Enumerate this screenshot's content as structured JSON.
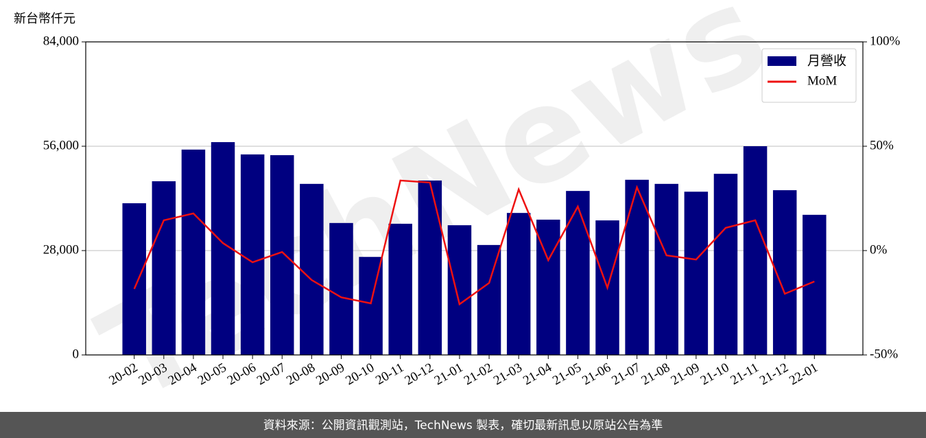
{
  "chart_data": {
    "type": "bar_line",
    "y_label": "新台幣仟元",
    "watermark": "TechNews",
    "footer": "資料來源：公開資訊觀測站，TechNews 製表，確切最新訊息以原站公告為準",
    "categories": [
      "20-02",
      "20-03",
      "20-04",
      "20-05",
      "20-06",
      "20-07",
      "20-08",
      "20-09",
      "20-10",
      "20-11",
      "20-12",
      "21-01",
      "21-02",
      "21-03",
      "21-04",
      "21-05",
      "21-06",
      "21-07",
      "21-08",
      "21-09",
      "21-10",
      "21-11",
      "21-12",
      "22-01"
    ],
    "series": [
      {
        "name": "月營收",
        "type": "bar",
        "color": "#000080",
        "values": [
          40700,
          46600,
          55100,
          57100,
          53800,
          53600,
          45900,
          35400,
          26300,
          35200,
          46800,
          34800,
          29500,
          38100,
          36300,
          44000,
          36100,
          47000,
          45900,
          43800,
          48600,
          56000,
          44200,
          37600
        ]
      },
      {
        "name": "MoM",
        "type": "line",
        "axis": "y2",
        "color": "#ee1111",
        "values": [
          -18.4,
          14.5,
          17.8,
          3.6,
          -5.6,
          -0.7,
          -14.1,
          -22.4,
          -25.3,
          33.6,
          32.6,
          -25.7,
          -15.5,
          29.3,
          -4.6,
          21.1,
          -17.8,
          30.3,
          -2.3,
          -4.3,
          10.9,
          14.5,
          -20.7,
          -14.8
        ]
      }
    ],
    "ylim": [
      0,
      84000
    ],
    "yticks": [
      0,
      {
        "value": 28000,
        "label": "28,000"
      },
      {
        "value": 56000,
        "label": "56,000"
      },
      {
        "value": 84000,
        "label": "84,000"
      }
    ],
    "y2lim": [
      -50,
      100
    ],
    "y2ticks": [
      {
        "value": -50,
        "label": "-50%"
      },
      {
        "value": 0,
        "label": "0%"
      },
      {
        "value": 50,
        "label": "50%"
      },
      {
        "value": 100,
        "label": "100%"
      }
    ],
    "grid": true,
    "legend": "upper-right"
  }
}
